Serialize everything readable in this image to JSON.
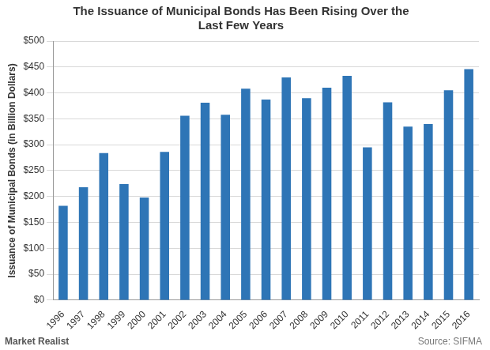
{
  "chart_data": {
    "type": "bar",
    "title": [
      "The Issuance of Municipal Bonds Has Been Rising Over the",
      "Last Few Years"
    ],
    "y_label": "Issuance of Municipal Bonds (in Billion Dollars)",
    "source": "Source: SIFMA",
    "brand": "Market Realist",
    "categories": [
      "1996",
      "1997",
      "1998",
      "1999",
      "2000",
      "2001",
      "2002",
      "2003",
      "2004",
      "2005",
      "2006",
      "2007",
      "2008",
      "2009",
      "2010",
      "2011",
      "2012",
      "2013",
      "2014",
      "2015",
      "2016"
    ],
    "values": [
      182,
      218,
      284,
      224,
      198,
      286,
      356,
      381,
      358,
      408,
      387,
      430,
      390,
      410,
      433,
      295,
      382,
      335,
      340,
      405,
      446
    ],
    "color": "#2e75b6",
    "ylim": [
      0,
      500
    ],
    "yticks": [
      {
        "value": 0,
        "label": "$0"
      },
      {
        "value": 50,
        "label": "$50"
      },
      {
        "value": 100,
        "label": "$100"
      },
      {
        "value": 150,
        "label": "$150"
      },
      {
        "value": 200,
        "label": "$200"
      },
      {
        "value": 250,
        "label": "$250"
      },
      {
        "value": 300,
        "label": "$300"
      },
      {
        "value": 350,
        "label": "$350"
      },
      {
        "value": 400,
        "label": "$400"
      },
      {
        "value": 450,
        "label": "$450"
      },
      {
        "value": 500,
        "label": "$500"
      }
    ],
    "grid": true
  }
}
